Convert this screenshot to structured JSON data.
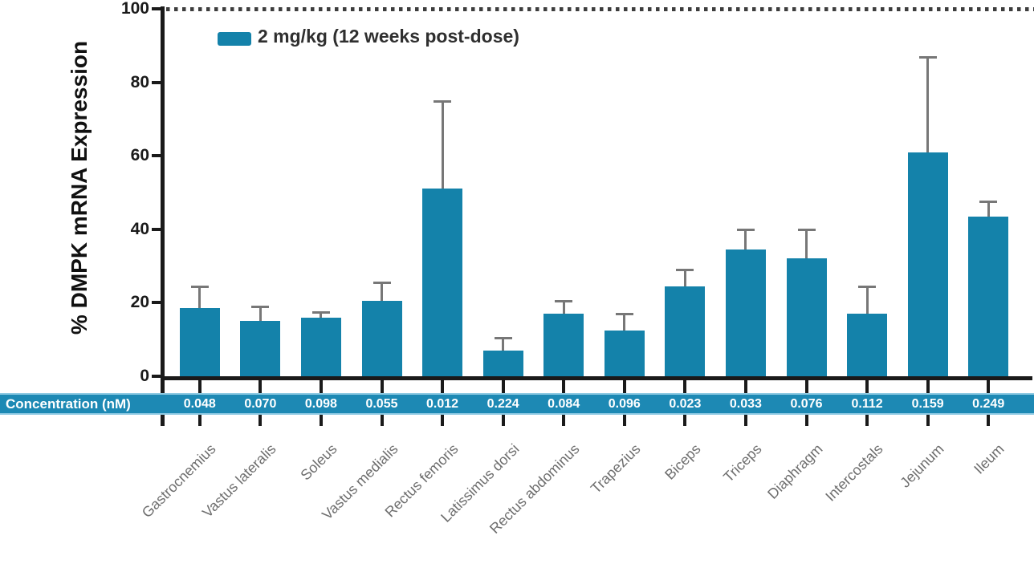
{
  "chart_data": {
    "type": "bar",
    "title": "",
    "ylabel": "% DMPK mRNA Expression",
    "xlabel": "",
    "ylim": [
      0,
      100
    ],
    "yticks": [
      0,
      20,
      40,
      60,
      80,
      100
    ],
    "reference_line_y": 100,
    "grid": false,
    "legend": {
      "label": "2 mg/kg (12 weeks post-dose)",
      "position": "top-left"
    },
    "categories": [
      "Gastrocnemius",
      "Vastus lateralis",
      "Soleus",
      "Vastus medialis",
      "Rectus femoris",
      "Latissimus dorsi",
      "Rectus abdominus",
      "Trapezius",
      "Biceps",
      "Triceps",
      "Diaphragm",
      "Intercostals",
      "Jejunum",
      "Ileum"
    ],
    "series": [
      {
        "name": "2 mg/kg (12 weeks post-dose)",
        "values": [
          18.5,
          15,
          16,
          20.5,
          51,
          7,
          17,
          12.5,
          24.5,
          34.5,
          32,
          17,
          61,
          43.5
        ],
        "error_plus": [
          6,
          4,
          1.5,
          5,
          24,
          3.5,
          3.5,
          4.5,
          4.5,
          5.5,
          8,
          7.5,
          26,
          4
        ]
      }
    ],
    "annotation_row": {
      "label": "Concentration (nM)",
      "values": [
        "0.048",
        "0.070",
        "0.098",
        "0.055",
        "0.012",
        "0.224",
        "0.084",
        "0.096",
        "0.023",
        "0.033",
        "0.076",
        "0.112",
        "0.159",
        "0.249"
      ]
    }
  },
  "colors": {
    "bar": "#1482aa",
    "band": "#1d89b4",
    "band_edge": "#8ecae3",
    "band_text": "#ffffff",
    "error_bar": "#777777",
    "axis": "#1a1a1a",
    "x_label": "#6e6e6e",
    "legend_text": "#2f2f2f",
    "reference_dots": "#3d3d3d"
  }
}
